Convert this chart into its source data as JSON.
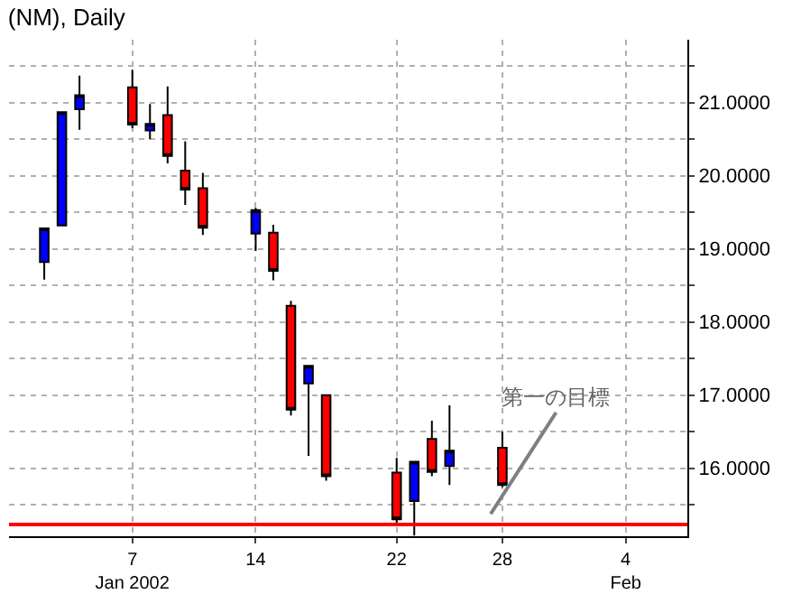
{
  "chart_data": {
    "type": "candlestick",
    "title": "(NM), Daily",
    "x": [
      "2002-01-02",
      "2002-01-03",
      "2002-01-04",
      "2002-01-07",
      "2002-01-08",
      "2002-01-09",
      "2002-01-10",
      "2002-01-11",
      "2002-01-14",
      "2002-01-15",
      "2002-01-16",
      "2002-01-17",
      "2002-01-18",
      "2002-01-22",
      "2002-01-23",
      "2002-01-24",
      "2002-01-25",
      "2002-01-28"
    ],
    "ohlc": [
      [
        18.82,
        19.28,
        18.58,
        19.28
      ],
      [
        19.32,
        20.87,
        19.32,
        20.87
      ],
      [
        20.91,
        21.37,
        20.63,
        21.1
      ],
      [
        21.21,
        21.45,
        20.65,
        20.7
      ],
      [
        20.62,
        20.98,
        20.5,
        20.71
      ],
      [
        20.83,
        21.22,
        20.17,
        20.27
      ],
      [
        20.07,
        20.47,
        19.6,
        19.81
      ],
      [
        19.83,
        20.04,
        19.19,
        19.29
      ],
      [
        19.21,
        19.56,
        18.97,
        19.53
      ],
      [
        19.22,
        19.33,
        18.57,
        18.7
      ],
      [
        18.22,
        18.29,
        16.72,
        16.8
      ],
      [
        17.16,
        17.4,
        16.17,
        17.4
      ],
      [
        17.0,
        17.0,
        15.83,
        15.89
      ],
      [
        15.94,
        16.14,
        15.25,
        15.3
      ],
      [
        15.55,
        16.09,
        15.08,
        16.09
      ],
      [
        16.4,
        16.65,
        15.89,
        15.95
      ],
      [
        16.03,
        16.86,
        15.77,
        16.24
      ],
      [
        16.28,
        16.5,
        15.74,
        15.77
      ]
    ],
    "colors": [
      "#0000ff",
      "#0000ff",
      "#0000ff",
      "#ff0000",
      "#0000ff",
      "#ff0000",
      "#ff0000",
      "#ff0000",
      "#0000ff",
      "#ff0000",
      "#ff0000",
      "#0000ff",
      "#ff0000",
      "#ff0000",
      "#0000ff",
      "#ff0000",
      "#0000ff",
      "#ff0000"
    ],
    "xlim": [
      "2001-12-31",
      "2002-02-07T12:00"
    ],
    "xticks": [
      {
        "value": "2002-01-07",
        "label": "7\nJan 2002"
      },
      {
        "value": "2002-01-14",
        "label": "14"
      },
      {
        "value": "2002-01-22",
        "label": "22"
      },
      {
        "value": "2002-01-28",
        "label": "28"
      },
      {
        "value": "2002-02-04",
        "label": "4\nFeb"
      }
    ],
    "ylim": [
      15.07,
      21.86
    ],
    "yticks": [
      {
        "value": 15.5,
        "label": null
      },
      {
        "value": 16,
        "label": "16.0000"
      },
      {
        "value": 16.5,
        "label": null
      },
      {
        "value": 17,
        "label": "17.0000"
      },
      {
        "value": 17.5,
        "label": null
      },
      {
        "value": 18,
        "label": "18.0000"
      },
      {
        "value": 18.5,
        "label": null
      },
      {
        "value": 19,
        "label": "19.0000"
      },
      {
        "value": 19.5,
        "label": null
      },
      {
        "value": 20,
        "label": "20.0000"
      },
      {
        "value": 20.5,
        "label": null
      },
      {
        "value": 21,
        "label": "21.0000"
      },
      {
        "value": 21.5,
        "label": null
      }
    ],
    "grid": true,
    "ref_lines": [
      {
        "axis": "y",
        "value": 15.23,
        "label": "第一の目標",
        "color": "#ff0000"
      }
    ]
  }
}
